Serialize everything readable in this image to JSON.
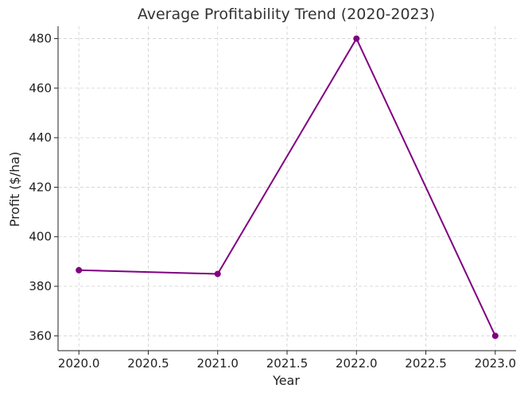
{
  "chart_data": {
    "type": "line",
    "title": "Average Profitability Trend (2020-2023)",
    "xlabel": "Year",
    "ylabel": "Profit ($/ha)",
    "x": [
      2020,
      2021,
      2022,
      2023
    ],
    "series": [
      {
        "values": [
          386.5,
          385,
          480,
          360
        ],
        "color": "#800080"
      }
    ],
    "xlim": [
      2019.85,
      2023.15
    ],
    "ylim": [
      354,
      485
    ],
    "xticks": [
      2020.0,
      2020.5,
      2021.0,
      2021.5,
      2022.0,
      2022.5,
      2023.0
    ],
    "xtick_labels": [
      "2020.0",
      "2020.5",
      "2021.0",
      "2021.5",
      "2022.0",
      "2022.5",
      "2023.0"
    ],
    "yticks": [
      360,
      380,
      400,
      420,
      440,
      460,
      480
    ],
    "ytick_labels": [
      "360",
      "380",
      "400",
      "420",
      "440",
      "460",
      "480"
    ],
    "grid": true,
    "marker": "circle"
  }
}
